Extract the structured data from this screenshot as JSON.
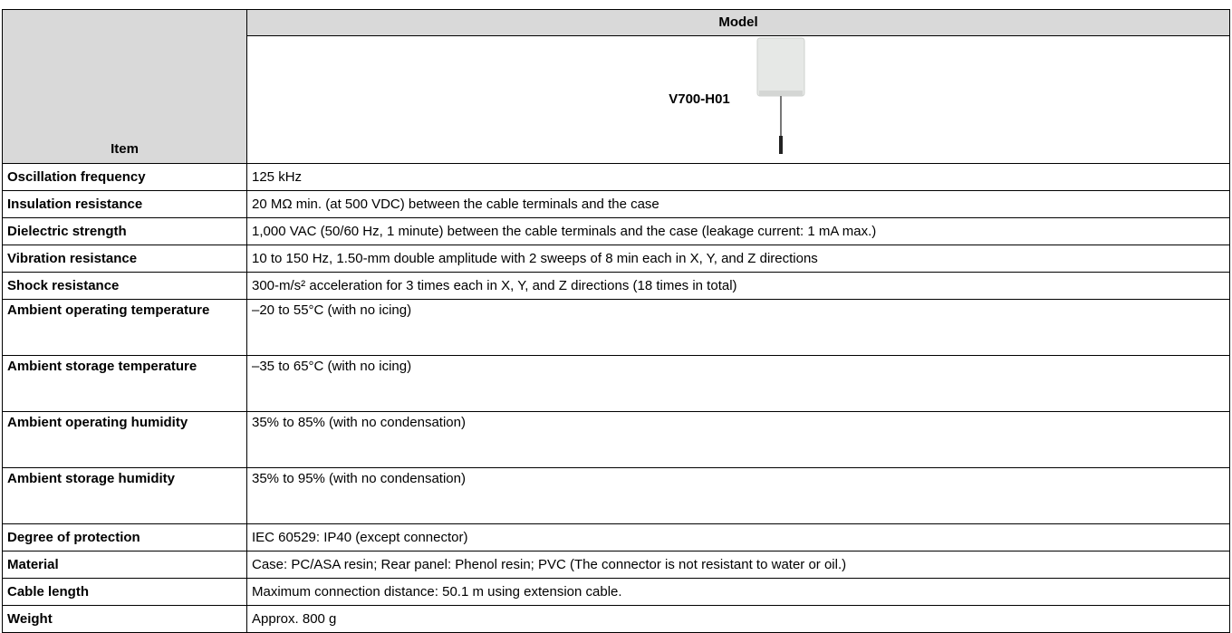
{
  "table": {
    "header": {
      "item": "Item",
      "model": "Model",
      "model_name": "V700-H01"
    },
    "rows": [
      [
        "Oscillation frequency",
        "125 kHz"
      ],
      [
        "Insulation resistance",
        "20 MΩ min. (at 500 VDC) between the cable terminals and the case"
      ],
      [
        "Dielectric strength",
        "1,000 VAC (50/60 Hz, 1 minute) between the cable terminals and the case (leakage current: 1 mA max.)"
      ],
      [
        "Vibration resistance",
        "10 to 150 Hz, 1.50-mm double amplitude with 2 sweeps of 8 min each in X, Y, and Z directions"
      ],
      [
        "Shock resistance",
        "300-m/s² acceleration for 3 times each in X, Y, and Z directions (18 times in total)"
      ],
      [
        "Ambient operating temperature",
        "–20 to 55°C (with no icing)"
      ],
      [
        "Ambient storage temperature",
        "–35 to 65°C (with no icing)"
      ],
      [
        "Ambient operating humidity",
        "35% to 85% (with no condensation)"
      ],
      [
        "Ambient storage humidity",
        "35% to 95% (with no condensation)"
      ],
      [
        "Degree of protection",
        "IEC 60529: IP40 (except connector)"
      ],
      [
        "Material",
        "Case: PC/ASA resin; Rear panel: Phenol resin; PVC (The connector is not resistant to water or oil.)"
      ],
      [
        "Cable length",
        "Maximum connection distance: 50.1 m using extension cable."
      ],
      [
        "Weight",
        "Approx. 800 g"
      ]
    ]
  }
}
